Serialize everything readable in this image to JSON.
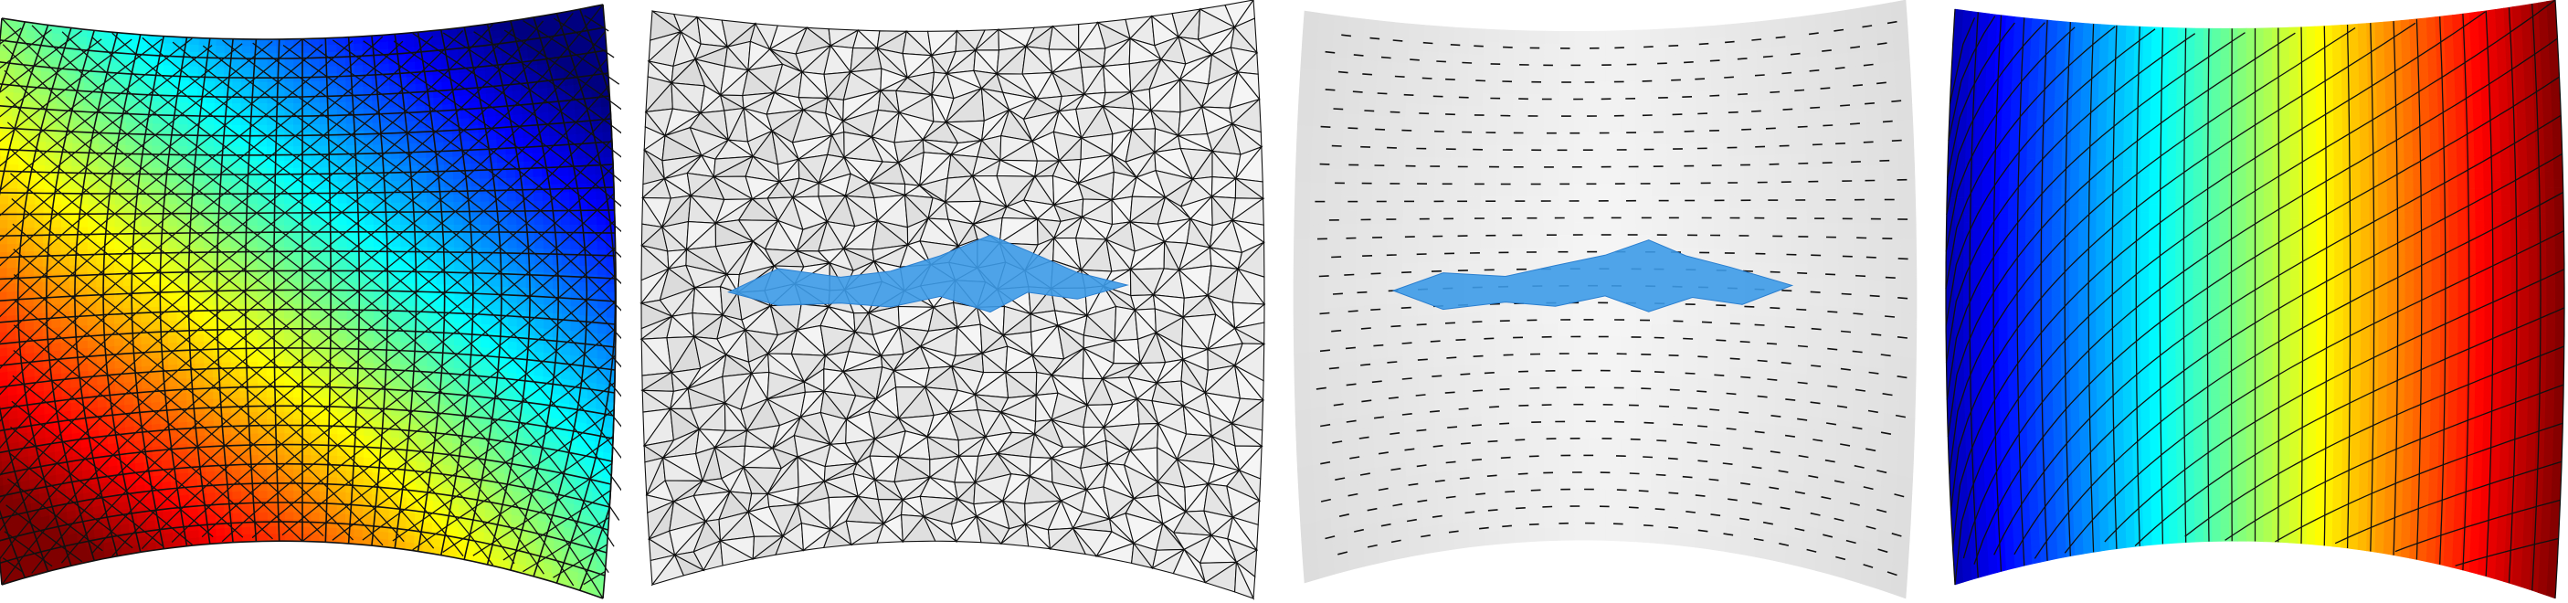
{
  "figure": {
    "panels": [
      {
        "id": "panel-1",
        "kind": "scalar-field",
        "colormap": "jet",
        "field_direction": "diagonal",
        "overlay": "quad-grid"
      },
      {
        "id": "panel-2",
        "kind": "triangle-mesh",
        "colormap": "gray",
        "highlight": "crack-region"
      },
      {
        "id": "panel-3",
        "kind": "direction-field",
        "colormap": "gray",
        "highlight": "crack-region"
      },
      {
        "id": "panel-4",
        "kind": "scalar-field",
        "colormap": "jet",
        "field_direction": "horizontal",
        "overlay": "quad-grid"
      }
    ],
    "colors": {
      "mesh_line": "#111111",
      "highlight": "#3d9be8",
      "surface_gray_light": "#f4f4f4",
      "surface_gray_dark": "#c8c8c8",
      "background": "#ffffff"
    }
  }
}
